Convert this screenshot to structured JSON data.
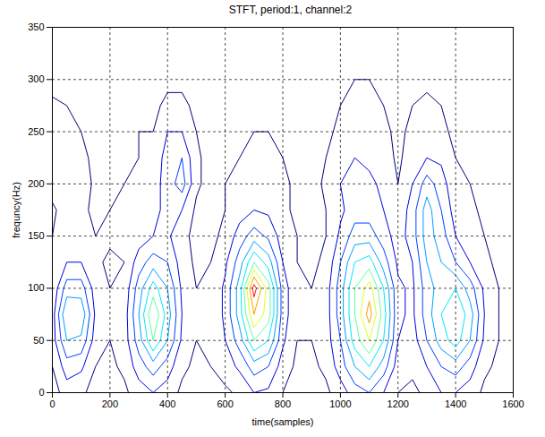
{
  "chart_data": {
    "type": "contour",
    "title": "STFT, period:1, channel:2",
    "x_label": "time(samples)",
    "y_label": "frequncy(Hz)",
    "xlim": [
      0,
      1600
    ],
    "ylim": [
      0,
      350
    ],
    "xticks": [
      0,
      200,
      400,
      600,
      800,
      1000,
      1200,
      1400,
      1600
    ],
    "yticks": [
      0,
      50,
      100,
      150,
      200,
      250,
      300,
      350
    ],
    "grid": true,
    "x": [
      0,
      50,
      100,
      150,
      200,
      250,
      300,
      350,
      400,
      450,
      500,
      550,
      600,
      650,
      700,
      750,
      800,
      850,
      900,
      950,
      1000,
      1050,
      1100,
      1150,
      1200,
      1250,
      1300,
      1350,
      1400,
      1450,
      1500,
      1550,
      1600
    ],
    "y": [
      0,
      25,
      50,
      75,
      100,
      125,
      150,
      175,
      200,
      225,
      250,
      275,
      300,
      325,
      350
    ],
    "z": [
      [
        0.5,
        1.5,
        1.2,
        0.6,
        0.5,
        0.8,
        1.5,
        2,
        1.5,
        0.8,
        0.5,
        0.6,
        0.8,
        1.2,
        2,
        1.8,
        1,
        0.6,
        0.5,
        0.8,
        1.5,
        2.5,
        3,
        2,
        1,
        0.8,
        1.2,
        2,
        2,
        1.5,
        0.8,
        0.5,
        0.3
      ],
      [
        1,
        2.5,
        2.2,
        1,
        0.8,
        1.2,
        2.5,
        3.5,
        2.5,
        1.2,
        0.8,
        1,
        1.5,
        2.2,
        3.5,
        3,
        1.5,
        0.8,
        0.8,
        1.2,
        2.5,
        4,
        5,
        3.5,
        1.5,
        1.2,
        2,
        3,
        3.5,
        2.5,
        1.2,
        0.8,
        0.4
      ],
      [
        1.5,
        4,
        3.8,
        1.5,
        1,
        1.5,
        3.5,
        6,
        4,
        1.8,
        1,
        1.2,
        2,
        3.5,
        6,
        5,
        2.2,
        1,
        1,
        1.5,
        3,
        5.5,
        7,
        5,
        2,
        1.5,
        3,
        4.5,
        5.5,
        4,
        1.8,
        1,
        0.5
      ],
      [
        1.5,
        5,
        4.8,
        1.8,
        1,
        1.5,
        4,
        7,
        4.5,
        2,
        1,
        1.2,
        2.2,
        4.5,
        8,
        6.5,
        2.5,
        1.2,
        1,
        1.5,
        3.5,
        6,
        8.5,
        5.5,
        2.2,
        1.8,
        3.5,
        5,
        6,
        4.5,
        2,
        1,
        0.5
      ],
      [
        1.2,
        3.5,
        3.5,
        1.5,
        1,
        1.3,
        3.5,
        5.5,
        4,
        1.8,
        1,
        1.2,
        2.2,
        4.5,
        9.5,
        6.5,
        2.5,
        1.2,
        1,
        1.5,
        3.5,
        6,
        7.5,
        5,
        2.2,
        1.8,
        3.5,
        4.5,
        5,
        3.5,
        1.8,
        1,
        0.5
      ],
      [
        1,
        2,
        2,
        1.2,
        0.8,
        1,
        2.5,
        3.5,
        3,
        1.5,
        0.8,
        1,
        1.8,
        3.5,
        6,
        4.5,
        2,
        1,
        0.8,
        1.2,
        3,
        5,
        5.5,
        3.5,
        1.8,
        2,
        4,
        4,
        3,
        2,
        1.2,
        0.8,
        0.4
      ],
      [
        1,
        1.5,
        1.5,
        1,
        1.2,
        1.5,
        1.5,
        2,
        2.2,
        1.2,
        0.8,
        0.8,
        1.2,
        2.5,
        3.5,
        2.8,
        1.5,
        1,
        0.8,
        1,
        2.2,
        3.5,
        3.5,
        2.5,
        1.5,
        2.5,
        4.5,
        3.5,
        2,
        1.5,
        1,
        0.8,
        0.4
      ],
      [
        0.8,
        1.5,
        1.2,
        0.8,
        1,
        1.2,
        1.2,
        1.5,
        2.5,
        2,
        0.8,
        0.6,
        1,
        1.5,
        2,
        1.8,
        1.2,
        0.8,
        0.6,
        1,
        1.8,
        2.5,
        2.5,
        2,
        1.2,
        2.5,
        4.5,
        3,
        1.5,
        1.2,
        0.8,
        0.6,
        0.3
      ],
      [
        1.5,
        2,
        1.5,
        0.8,
        0.8,
        1,
        1,
        1.5,
        2.5,
        3.5,
        1.2,
        0.6,
        1,
        1.2,
        1.5,
        1.5,
        1.2,
        0.8,
        0.6,
        1.2,
        2,
        2.5,
        2.2,
        1.8,
        1,
        2,
        3.5,
        2.5,
        1.2,
        1,
        0.8,
        0.6,
        0.3
      ],
      [
        1,
        1.5,
        1.2,
        0.8,
        0.8,
        0.8,
        1,
        1.2,
        2.5,
        3,
        1.2,
        0.6,
        0.8,
        1,
        1.2,
        1.2,
        1,
        0.6,
        0.5,
        1,
        1.5,
        2,
        1.8,
        1.5,
        0.8,
        1.5,
        2,
        1.8,
        1,
        0.8,
        0.6,
        0.5,
        0.3
      ],
      [
        1,
        1.2,
        1,
        0.6,
        0.6,
        0.8,
        1,
        1,
        2,
        2,
        1,
        0.5,
        0.6,
        0.8,
        1,
        1,
        0.8,
        0.5,
        0.5,
        0.8,
        1.2,
        1.5,
        1.5,
        1.2,
        0.8,
        1.2,
        1.5,
        1.2,
        0.8,
        0.6,
        0.5,
        0.4,
        0.3
      ],
      [
        1.2,
        1,
        0.8,
        0.5,
        0.5,
        0.6,
        0.8,
        0.8,
        1.2,
        1.2,
        0.8,
        0.5,
        0.5,
        0.6,
        0.8,
        0.8,
        0.6,
        0.5,
        0.4,
        0.6,
        1,
        1.2,
        1.2,
        1,
        0.6,
        1,
        1.2,
        1,
        0.6,
        0.5,
        0.4,
        0.4,
        0.2
      ],
      [
        0.6,
        0.6,
        0.5,
        0.4,
        0.4,
        0.5,
        0.6,
        0.6,
        0.8,
        0.8,
        0.6,
        0.4,
        0.4,
        0.5,
        0.6,
        0.6,
        0.5,
        0.4,
        0.3,
        0.5,
        0.8,
        1,
        1,
        0.8,
        0.5,
        0.6,
        0.8,
        0.6,
        0.5,
        0.4,
        0.3,
        0.3,
        0.2
      ],
      [
        0.4,
        0.4,
        0.4,
        0.3,
        0.3,
        0.4,
        0.5,
        0.5,
        0.6,
        0.6,
        0.5,
        0.3,
        0.3,
        0.4,
        0.5,
        0.5,
        0.4,
        0.3,
        0.3,
        0.4,
        0.6,
        0.7,
        0.7,
        0.6,
        0.4,
        0.5,
        0.6,
        0.5,
        0.4,
        0.3,
        0.3,
        0.3,
        0.2
      ],
      [
        0.3,
        0.3,
        0.3,
        0.3,
        0.3,
        0.3,
        0.4,
        0.4,
        0.5,
        0.5,
        0.4,
        0.3,
        0.3,
        0.3,
        0.4,
        0.4,
        0.3,
        0.3,
        0.2,
        0.3,
        0.5,
        0.6,
        0.6,
        0.5,
        0.3,
        0.4,
        0.5,
        0.4,
        0.3,
        0.3,
        0.2,
        0.2,
        0.2
      ]
    ],
    "levels": [
      1,
      2,
      3,
      4,
      5,
      6,
      7,
      8,
      9
    ],
    "colors": [
      "#00007f",
      "#0000df",
      "#0040ff",
      "#00a0ff",
      "#00e8ff",
      "#60ff9f",
      "#dfff20",
      "#ff9f00",
      "#ff2000"
    ]
  }
}
